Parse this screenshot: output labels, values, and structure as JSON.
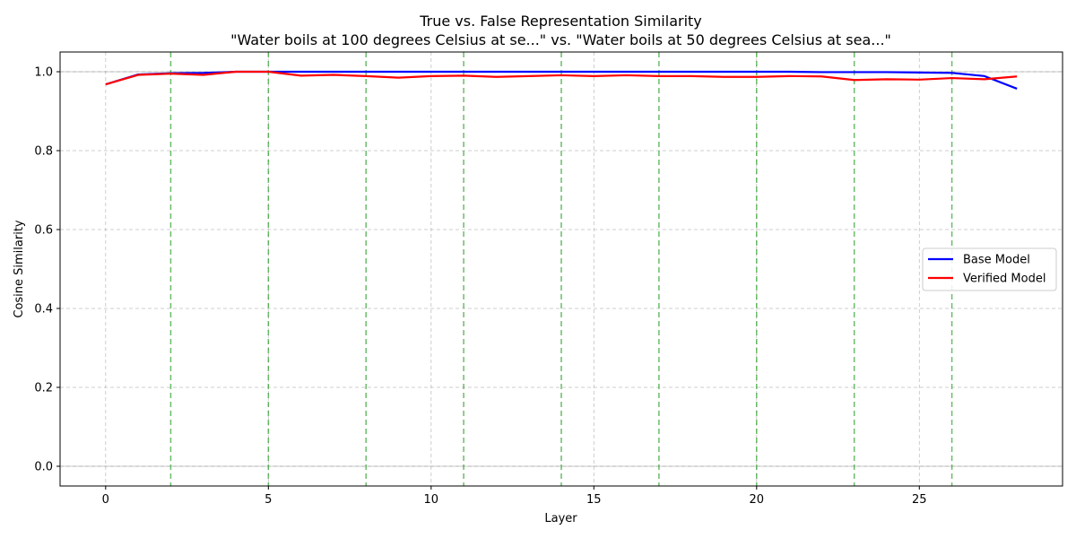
{
  "chart_data": {
    "type": "line",
    "title": "True vs. False Representation Similarity",
    "subtitle": "\"Water boils at 100 degrees Celsius at se...\" vs. \"Water boils at 50 degrees Celsius at sea...\"",
    "xlabel": "Layer",
    "ylabel": "Cosine Similarity",
    "xlim": [
      -1.4,
      29.4
    ],
    "ylim": [
      -0.05,
      1.05
    ],
    "xticks": [
      0,
      5,
      10,
      15,
      20,
      25
    ],
    "yticks": [
      0.0,
      0.2,
      0.4,
      0.6,
      0.8,
      1.0
    ],
    "xtick_labels": [
      "0",
      "5",
      "10",
      "15",
      "20",
      "25"
    ],
    "ytick_labels": [
      "0.0",
      "0.2",
      "0.4",
      "0.6",
      "0.8",
      "1.0"
    ],
    "grid": true,
    "hlines": [
      0.0,
      1.0
    ],
    "vlines": [
      2,
      5,
      8,
      11,
      14,
      17,
      20,
      23,
      26
    ],
    "legend_position": "center-right",
    "x": [
      0,
      1,
      2,
      3,
      4,
      5,
      6,
      7,
      8,
      9,
      10,
      11,
      12,
      13,
      14,
      15,
      16,
      17,
      18,
      19,
      20,
      21,
      22,
      23,
      24,
      25,
      26,
      27,
      28
    ],
    "series": [
      {
        "name": "Base Model",
        "color": "#0000ff",
        "values": [
          0.968,
          0.993,
          0.996,
          0.997,
          1.0,
          1.0,
          1.0,
          1.0,
          1.0,
          1.0,
          1.0,
          1.0,
          1.0,
          1.0,
          1.0,
          1.0,
          1.0,
          1.0,
          1.0,
          1.0,
          1.0,
          1.0,
          0.999,
          0.999,
          0.999,
          0.998,
          0.997,
          0.989,
          0.957
        ]
      },
      {
        "name": "Verified Model",
        "color": "#ff0000",
        "values": [
          0.968,
          0.992,
          0.995,
          0.992,
          1.0,
          1.0,
          0.99,
          0.992,
          0.989,
          0.985,
          0.989,
          0.99,
          0.987,
          0.989,
          0.991,
          0.989,
          0.991,
          0.989,
          0.989,
          0.987,
          0.987,
          0.989,
          0.988,
          0.979,
          0.981,
          0.98,
          0.984,
          0.981,
          0.988
        ]
      }
    ],
    "vline_color": "#2ca02c"
  }
}
